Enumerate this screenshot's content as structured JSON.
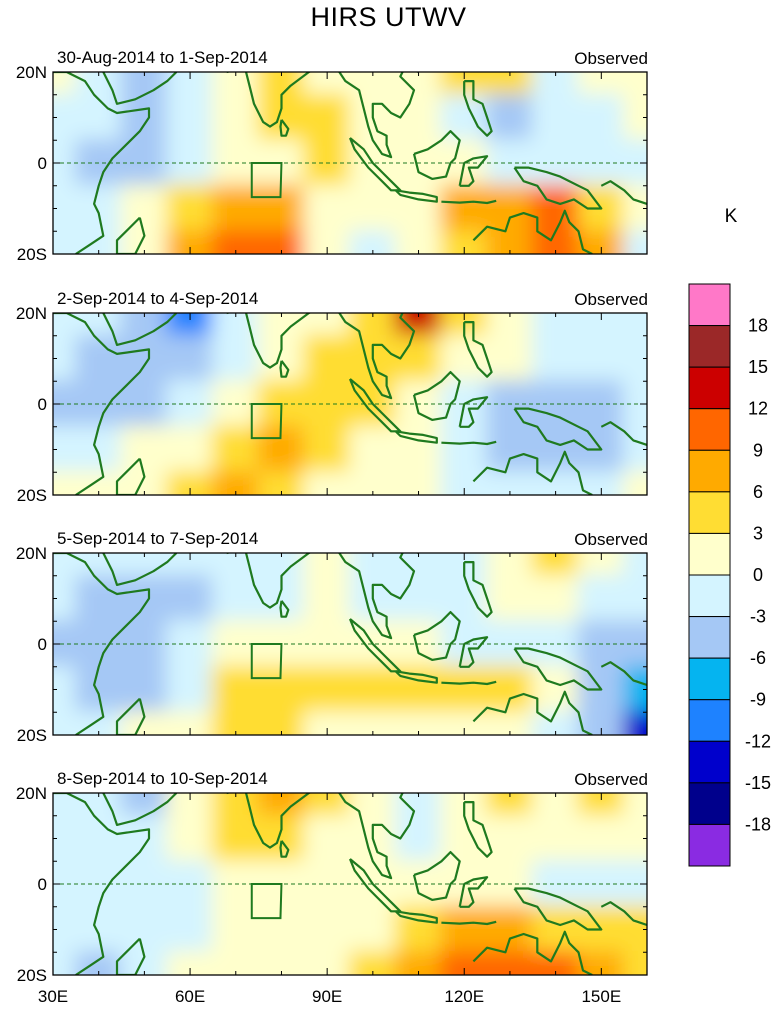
{
  "title": "HIRS UTWV",
  "colorbar": {
    "unit": "K",
    "labels": [
      "18",
      "15",
      "12",
      "9",
      "6",
      "3",
      "0",
      "-3",
      "-6",
      "-9",
      "-12",
      "-15",
      "-18"
    ],
    "colors": [
      "#ff78c8",
      "#9b2828",
      "#cc0000",
      "#ff6600",
      "#ffaa00",
      "#ffdd33",
      "#ffffcc",
      "#d4f4ff",
      "#a5c8f5",
      "#05b4f0",
      "#1e82ff",
      "#0000cc",
      "#00008c",
      "#8a2be2"
    ]
  },
  "axes": {
    "lon_ticks": [
      "30E",
      "60E",
      "90E",
      "120E",
      "150E"
    ],
    "lat_ticks": [
      "20N",
      "0",
      "20S"
    ]
  },
  "chart_data": [
    {
      "type": "heatmap",
      "period": "30-Aug-2014 to 1-Sep-2014",
      "label": "Observed",
      "lon_range": [
        30,
        160
      ],
      "lat_range": [
        -20,
        20
      ],
      "lat_rows": [
        20,
        10,
        0,
        -10,
        -20
      ],
      "lon_cols": [
        30,
        40,
        50,
        60,
        70,
        80,
        90,
        100,
        110,
        120,
        130,
        140,
        150,
        160
      ],
      "values": [
        [
          1,
          -1,
          -4,
          -2,
          1,
          3,
          2,
          1,
          0,
          4,
          3,
          -2,
          1,
          2
        ],
        [
          -2,
          -3,
          -5,
          -3,
          0,
          3,
          4,
          1,
          0,
          -2,
          -4,
          -3,
          -2,
          1
        ],
        [
          -3,
          -4,
          -4,
          -2,
          1,
          2,
          4,
          2,
          0,
          1,
          -1,
          -3,
          -2,
          -1
        ],
        [
          -3,
          -2,
          0,
          4,
          8,
          7,
          1,
          0,
          2,
          6,
          8,
          9,
          4,
          1
        ],
        [
          -2,
          -1,
          2,
          6,
          10,
          9,
          2,
          -2,
          0,
          3,
          8,
          10,
          6,
          -3
        ]
      ]
    },
    {
      "type": "heatmap",
      "period": "2-Sep-2014 to 4-Sep-2014",
      "label": "Observed",
      "lon_range": [
        30,
        160
      ],
      "lat_range": [
        -20,
        20
      ],
      "lat_rows": [
        20,
        10,
        0,
        -10,
        -20
      ],
      "lon_cols": [
        30,
        40,
        50,
        60,
        70,
        80,
        90,
        100,
        110,
        120,
        130,
        140,
        150,
        160
      ],
      "values": [
        [
          -2,
          -3,
          -4,
          -10,
          -3,
          2,
          1,
          4,
          14,
          4,
          2,
          -1,
          -2,
          -1
        ],
        [
          -3,
          -4,
          -4,
          -5,
          -1,
          1,
          3,
          4,
          5,
          2,
          0,
          -3,
          -2,
          -1
        ],
        [
          -4,
          -6,
          -5,
          -3,
          1,
          4,
          4,
          3,
          1,
          -3,
          -4,
          -5,
          -4,
          -3
        ],
        [
          -3,
          -2,
          0,
          2,
          5,
          6,
          4,
          2,
          1,
          -2,
          -4,
          -6,
          -4,
          -2
        ],
        [
          1,
          0,
          1,
          3,
          6,
          5,
          2,
          0,
          0,
          -2,
          -2,
          -3,
          -1,
          0
        ]
      ]
    },
    {
      "type": "heatmap",
      "period": "5-Sep-2014 to 7-Sep-2014",
      "label": "Observed",
      "lon_range": [
        30,
        160
      ],
      "lat_range": [
        -20,
        20
      ],
      "lat_rows": [
        20,
        10,
        0,
        -10,
        -20
      ],
      "lon_cols": [
        30,
        40,
        50,
        60,
        70,
        80,
        90,
        100,
        110,
        120,
        130,
        140,
        150,
        160
      ],
      "values": [
        [
          -2,
          -3,
          -2,
          -1,
          -2,
          -1,
          1,
          -1,
          -2,
          -1,
          2,
          4,
          2,
          -1
        ],
        [
          -3,
          -4,
          -5,
          -4,
          -2,
          -1,
          0,
          -2,
          -3,
          -1,
          0,
          2,
          -1,
          -2
        ],
        [
          -4,
          -5,
          -4,
          -2,
          1,
          2,
          2,
          1,
          0,
          -1,
          -2,
          -2,
          -4,
          -6
        ],
        [
          -3,
          -4,
          -6,
          -1,
          3,
          4,
          3,
          4,
          5,
          5,
          3,
          1,
          -5,
          -9
        ],
        [
          -1,
          -2,
          0,
          1,
          4,
          3,
          1,
          2,
          2,
          2,
          1,
          -3,
          -6,
          -14
        ]
      ]
    },
    {
      "type": "heatmap",
      "period": "8-Sep-2014 to 10-Sep-2014",
      "label": "Observed",
      "lon_range": [
        30,
        160
      ],
      "lat_range": [
        -20,
        20
      ],
      "lat_rows": [
        20,
        10,
        0,
        -10,
        -20
      ],
      "lon_cols": [
        30,
        40,
        50,
        60,
        70,
        80,
        90,
        100,
        110,
        120,
        130,
        140,
        150,
        160
      ],
      "values": [
        [
          -1,
          -3,
          -5,
          0,
          5,
          7,
          4,
          1,
          -2,
          2,
          4,
          2,
          4,
          2
        ],
        [
          -2,
          -3,
          -3,
          1,
          4,
          4,
          2,
          0,
          -1,
          0,
          2,
          1,
          1,
          0
        ],
        [
          -2,
          -3,
          -3,
          -1,
          0,
          1,
          1,
          1,
          0,
          1,
          1,
          -1,
          -2,
          -1
        ],
        [
          -2,
          -3,
          -2,
          -1,
          0,
          0,
          1,
          2,
          5,
          6,
          6,
          5,
          4,
          3
        ],
        [
          -3,
          -4,
          -2,
          0,
          1,
          1,
          2,
          4,
          8,
          9,
          10,
          9,
          7,
          5
        ]
      ]
    }
  ]
}
